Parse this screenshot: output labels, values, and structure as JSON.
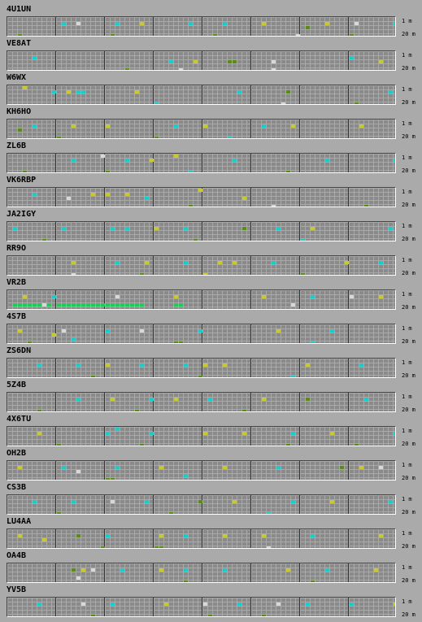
{
  "colors": {
    "background": "#aaaaaa",
    "cyan": "#22c8c8",
    "yellow": "#c8c832",
    "olive": "#5a8a1a",
    "green": "#22c85a",
    "white": "#d8d8d8"
  },
  "band_labels": {
    "top": "1 m",
    "bottom": "20 m"
  },
  "beacons": [
    {
      "call": "4U1UN",
      "cells": [
        [
          11,
          1,
          "cyan"
        ],
        [
          14,
          1,
          "white"
        ],
        [
          22,
          1,
          "cyan"
        ],
        [
          27,
          1,
          "yellow"
        ],
        [
          37,
          1,
          "cyan"
        ],
        [
          44,
          1,
          "cyan"
        ],
        [
          52,
          1,
          "yellow"
        ],
        [
          61,
          2,
          "olive"
        ],
        [
          65,
          1,
          "yellow"
        ],
        [
          71,
          1,
          "white"
        ],
        [
          79,
          1,
          "cyan"
        ],
        [
          88,
          1,
          "yellow"
        ],
        [
          2,
          4,
          "olive"
        ],
        [
          21,
          4,
          "olive"
        ],
        [
          42,
          4,
          "olive"
        ],
        [
          59,
          4,
          "white"
        ],
        [
          70,
          4,
          "olive"
        ]
      ]
    },
    {
      "call": "VE8AT",
      "cells": [
        [
          5,
          1,
          "cyan"
        ],
        [
          33,
          2,
          "cyan"
        ],
        [
          38,
          2,
          "yellow"
        ],
        [
          45,
          2,
          "olive"
        ],
        [
          46,
          2,
          "olive"
        ],
        [
          54,
          2,
          "white"
        ],
        [
          70,
          1,
          "cyan"
        ],
        [
          83,
          2,
          "olive"
        ],
        [
          76,
          2,
          "yellow"
        ],
        [
          24,
          4,
          "olive"
        ],
        [
          35,
          4,
          "white"
        ],
        [
          54,
          4,
          "white"
        ]
      ]
    },
    {
      "call": "W6WX",
      "cells": [
        [
          3,
          0,
          "yellow"
        ],
        [
          9,
          1,
          "cyan"
        ],
        [
          12,
          1,
          "yellow"
        ],
        [
          14,
          1,
          "cyan"
        ],
        [
          15,
          1,
          "cyan"
        ],
        [
          26,
          1,
          "yellow"
        ],
        [
          47,
          1,
          "cyan"
        ],
        [
          57,
          1,
          "olive"
        ],
        [
          78,
          1,
          "cyan"
        ],
        [
          83,
          1,
          "yellow"
        ],
        [
          89,
          1,
          "yellow"
        ],
        [
          56,
          4,
          "white"
        ],
        [
          30,
          4,
          "cyan"
        ],
        [
          71,
          4,
          "olive"
        ]
      ]
    },
    {
      "call": "KH6HO",
      "cells": [
        [
          5,
          1,
          "cyan"
        ],
        [
          13,
          1,
          "yellow"
        ],
        [
          20,
          1,
          "yellow"
        ],
        [
          34,
          1,
          "cyan"
        ],
        [
          40,
          1,
          "yellow"
        ],
        [
          52,
          1,
          "cyan"
        ],
        [
          58,
          1,
          "yellow"
        ],
        [
          72,
          1,
          "yellow"
        ],
        [
          84,
          1,
          "yellow"
        ],
        [
          88,
          1,
          "yellow"
        ],
        [
          2,
          2,
          "olive"
        ],
        [
          10,
          4,
          "olive"
        ],
        [
          30,
          4,
          "olive"
        ],
        [
          45,
          4,
          "cyan"
        ]
      ]
    },
    {
      "call": "ZL6B",
      "cells": [
        [
          13,
          1,
          "cyan"
        ],
        [
          19,
          0,
          "white"
        ],
        [
          24,
          1,
          "cyan"
        ],
        [
          29,
          1,
          "yellow"
        ],
        [
          34,
          0,
          "yellow"
        ],
        [
          46,
          1,
          "cyan"
        ],
        [
          65,
          1,
          "cyan"
        ],
        [
          79,
          1,
          "cyan"
        ],
        [
          3,
          4,
          "olive"
        ],
        [
          20,
          4,
          "olive"
        ],
        [
          37,
          4,
          "cyan"
        ],
        [
          57,
          4,
          "olive"
        ]
      ]
    },
    {
      "call": "VK6RBP",
      "cells": [
        [
          5,
          1,
          "cyan"
        ],
        [
          17,
          1,
          "yellow"
        ],
        [
          20,
          1,
          "yellow"
        ],
        [
          24,
          1,
          "yellow"
        ],
        [
          39,
          0,
          "yellow"
        ],
        [
          48,
          2,
          "yellow"
        ],
        [
          12,
          2,
          "white"
        ],
        [
          28,
          2,
          "cyan"
        ],
        [
          37,
          4,
          "olive"
        ],
        [
          54,
          4,
          "white"
        ],
        [
          73,
          4,
          "olive"
        ]
      ]
    },
    {
      "call": "JA2IGY",
      "cells": [
        [
          1,
          1,
          "cyan"
        ],
        [
          11,
          1,
          "cyan"
        ],
        [
          21,
          1,
          "cyan"
        ],
        [
          24,
          1,
          "cyan"
        ],
        [
          30,
          1,
          "yellow"
        ],
        [
          36,
          1,
          "cyan"
        ],
        [
          48,
          1,
          "olive"
        ],
        [
          55,
          1,
          "cyan"
        ],
        [
          62,
          1,
          "yellow"
        ],
        [
          78,
          1,
          "cyan"
        ],
        [
          7,
          4,
          "olive"
        ],
        [
          38,
          4,
          "olive"
        ],
        [
          60,
          4,
          "cyan"
        ]
      ]
    },
    {
      "call": "RR9O",
      "cells": [
        [
          13,
          1,
          "yellow"
        ],
        [
          22,
          1,
          "cyan"
        ],
        [
          28,
          1,
          "yellow"
        ],
        [
          36,
          1,
          "cyan"
        ],
        [
          43,
          1,
          "yellow"
        ],
        [
          46,
          1,
          "yellow"
        ],
        [
          54,
          1,
          "cyan"
        ],
        [
          69,
          1,
          "yellow"
        ],
        [
          76,
          1,
          "cyan"
        ],
        [
          83,
          1,
          "cyan"
        ],
        [
          88,
          1,
          "cyan"
        ],
        [
          13,
          4,
          "white"
        ],
        [
          27,
          4,
          "olive"
        ],
        [
          40,
          4,
          "yellow"
        ],
        [
          60,
          4,
          "olive"
        ]
      ]
    },
    {
      "call": "VR2B",
      "cells": [
        [
          3,
          1,
          "yellow"
        ],
        [
          9,
          1,
          "cyan"
        ],
        [
          22,
          1,
          "white"
        ],
        [
          34,
          1,
          "yellow"
        ],
        [
          52,
          1,
          "yellow"
        ],
        [
          62,
          1,
          "cyan"
        ],
        [
          70,
          1,
          "white"
        ],
        [
          76,
          1,
          "yellow"
        ],
        [
          85,
          1,
          "cyan"
        ],
        [
          1,
          3,
          "green"
        ],
        [
          2,
          3,
          "green"
        ],
        [
          3,
          3,
          "green"
        ],
        [
          4,
          3,
          "green"
        ],
        [
          5,
          3,
          "green"
        ],
        [
          6,
          3,
          "green"
        ],
        [
          7,
          3,
          "white"
        ],
        [
          8,
          3,
          "green"
        ],
        [
          10,
          3,
          "green"
        ],
        [
          11,
          3,
          "green"
        ],
        [
          12,
          3,
          "green"
        ],
        [
          13,
          3,
          "green"
        ],
        [
          14,
          3,
          "green"
        ],
        [
          15,
          3,
          "green"
        ],
        [
          16,
          3,
          "green"
        ],
        [
          17,
          3,
          "green"
        ],
        [
          18,
          3,
          "green"
        ],
        [
          19,
          3,
          "green"
        ],
        [
          20,
          3,
          "green"
        ],
        [
          21,
          3,
          "green"
        ],
        [
          22,
          3,
          "green"
        ],
        [
          23,
          3,
          "green"
        ],
        [
          24,
          3,
          "green"
        ],
        [
          25,
          3,
          "green"
        ],
        [
          26,
          3,
          "green"
        ],
        [
          27,
          3,
          "green"
        ],
        [
          34,
          3,
          "green"
        ],
        [
          35,
          3,
          "green"
        ],
        [
          58,
          3,
          "white"
        ],
        [
          86,
          3,
          "green"
        ],
        [
          87,
          3,
          "green"
        ],
        [
          88,
          3,
          "green"
        ],
        [
          89,
          3,
          "green"
        ],
        [
          90,
          3,
          "green"
        ],
        [
          91,
          3,
          "green"
        ],
        [
          92,
          3,
          "green"
        ],
        [
          93,
          3,
          "green"
        ]
      ]
    },
    {
      "call": "4S7B",
      "cells": [
        [
          2,
          1,
          "yellow"
        ],
        [
          9,
          2,
          "yellow"
        ],
        [
          11,
          1,
          "white"
        ],
        [
          20,
          1,
          "cyan"
        ],
        [
          27,
          1,
          "white"
        ],
        [
          39,
          1,
          "cyan"
        ],
        [
          55,
          1,
          "yellow"
        ],
        [
          66,
          1,
          "cyan"
        ],
        [
          80,
          1,
          "cyan"
        ],
        [
          84,
          1,
          "yellow"
        ],
        [
          4,
          4,
          "olive"
        ],
        [
          13,
          3,
          "cyan"
        ],
        [
          34,
          4,
          "olive"
        ],
        [
          35,
          4,
          "olive"
        ],
        [
          62,
          4,
          "cyan"
        ]
      ]
    },
    {
      "call": "ZS6DN",
      "cells": [
        [
          6,
          1,
          "cyan"
        ],
        [
          14,
          1,
          "cyan"
        ],
        [
          20,
          1,
          "yellow"
        ],
        [
          27,
          1,
          "cyan"
        ],
        [
          36,
          1,
          "cyan"
        ],
        [
          40,
          1,
          "yellow"
        ],
        [
          44,
          1,
          "yellow"
        ],
        [
          61,
          1,
          "yellow"
        ],
        [
          72,
          1,
          "cyan"
        ],
        [
          84,
          1,
          "yellow"
        ],
        [
          17,
          4,
          "olive"
        ],
        [
          39,
          4,
          "olive"
        ],
        [
          58,
          4,
          "cyan"
        ]
      ]
    },
    {
      "call": "5Z4B",
      "cells": [
        [
          14,
          1,
          "cyan"
        ],
        [
          21,
          1,
          "yellow"
        ],
        [
          29,
          1,
          "cyan"
        ],
        [
          34,
          1,
          "yellow"
        ],
        [
          41,
          1,
          "cyan"
        ],
        [
          52,
          1,
          "yellow"
        ],
        [
          61,
          1,
          "olive"
        ],
        [
          73,
          1,
          "cyan"
        ],
        [
          82,
          1,
          "yellow"
        ],
        [
          87,
          1,
          "yellow"
        ],
        [
          6,
          4,
          "olive"
        ],
        [
          26,
          4,
          "olive"
        ],
        [
          48,
          4,
          "olive"
        ]
      ]
    },
    {
      "call": "4X6TU",
      "cells": [
        [
          6,
          1,
          "yellow"
        ],
        [
          20,
          1,
          "cyan"
        ],
        [
          22,
          0,
          "cyan"
        ],
        [
          29,
          1,
          "cyan"
        ],
        [
          40,
          1,
          "yellow"
        ],
        [
          48,
          1,
          "yellow"
        ],
        [
          58,
          1,
          "cyan"
        ],
        [
          66,
          1,
          "yellow"
        ],
        [
          79,
          1,
          "cyan"
        ],
        [
          88,
          1,
          "yellow"
        ],
        [
          10,
          4,
          "olive"
        ],
        [
          27,
          4,
          "olive"
        ],
        [
          57,
          4,
          "olive"
        ],
        [
          71,
          4,
          "olive"
        ]
      ]
    },
    {
      "call": "OH2B",
      "cells": [
        [
          2,
          1,
          "yellow"
        ],
        [
          11,
          1,
          "cyan"
        ],
        [
          14,
          2,
          "white"
        ],
        [
          22,
          1,
          "cyan"
        ],
        [
          31,
          1,
          "yellow"
        ],
        [
          44,
          1,
          "yellow"
        ],
        [
          55,
          1,
          "cyan"
        ],
        [
          68,
          1,
          "olive"
        ],
        [
          72,
          1,
          "yellow"
        ],
        [
          76,
          1,
          "white"
        ],
        [
          85,
          1,
          "white"
        ],
        [
          89,
          1,
          "white"
        ],
        [
          20,
          4,
          "olive"
        ],
        [
          21,
          4,
          "olive"
        ],
        [
          36,
          3,
          "cyan"
        ]
      ]
    },
    {
      "call": "CS3B",
      "cells": [
        [
          5,
          1,
          "cyan"
        ],
        [
          13,
          1,
          "cyan"
        ],
        [
          21,
          1,
          "white"
        ],
        [
          28,
          1,
          "cyan"
        ],
        [
          39,
          1,
          "olive"
        ],
        [
          46,
          1,
          "yellow"
        ],
        [
          58,
          1,
          "cyan"
        ],
        [
          66,
          1,
          "yellow"
        ],
        [
          78,
          1,
          "cyan"
        ],
        [
          84,
          1,
          "white"
        ],
        [
          10,
          4,
          "olive"
        ],
        [
          33,
          4,
          "olive"
        ],
        [
          53,
          4,
          "cyan"
        ]
      ]
    },
    {
      "call": "LU4AA",
      "cells": [
        [
          2,
          1,
          "yellow"
        ],
        [
          7,
          2,
          "yellow"
        ],
        [
          14,
          1,
          "olive"
        ],
        [
          20,
          1,
          "cyan"
        ],
        [
          31,
          1,
          "yellow"
        ],
        [
          36,
          1,
          "cyan"
        ],
        [
          44,
          1,
          "yellow"
        ],
        [
          52,
          1,
          "yellow"
        ],
        [
          62,
          1,
          "cyan"
        ],
        [
          76,
          1,
          "yellow"
        ],
        [
          88,
          1,
          "yellow"
        ],
        [
          19,
          4,
          "olive"
        ],
        [
          30,
          4,
          "olive"
        ],
        [
          31,
          4,
          "olive"
        ],
        [
          53,
          4,
          "white"
        ]
      ]
    },
    {
      "call": "OA4B",
      "cells": [
        [
          13,
          1,
          "olive"
        ],
        [
          15,
          1,
          "yellow"
        ],
        [
          17,
          1,
          "white"
        ],
        [
          23,
          1,
          "cyan"
        ],
        [
          31,
          1,
          "yellow"
        ],
        [
          36,
          1,
          "cyan"
        ],
        [
          44,
          1,
          "cyan"
        ],
        [
          57,
          1,
          "yellow"
        ],
        [
          65,
          1,
          "cyan"
        ],
        [
          75,
          1,
          "yellow"
        ],
        [
          86,
          1,
          "cyan"
        ],
        [
          14,
          3,
          "white"
        ],
        [
          36,
          4,
          "olive"
        ],
        [
          62,
          4,
          "olive"
        ]
      ]
    },
    {
      "call": "YV5B",
      "cells": [
        [
          6,
          1,
          "cyan"
        ],
        [
          15,
          1,
          "white"
        ],
        [
          21,
          1,
          "cyan"
        ],
        [
          32,
          1,
          "yellow"
        ],
        [
          40,
          1,
          "white"
        ],
        [
          47,
          1,
          "cyan"
        ],
        [
          55,
          1,
          "white"
        ],
        [
          61,
          1,
          "cyan"
        ],
        [
          70,
          1,
          "cyan"
        ],
        [
          79,
          1,
          "yellow"
        ],
        [
          87,
          1,
          "cyan"
        ],
        [
          17,
          4,
          "olive"
        ],
        [
          41,
          4,
          "olive"
        ],
        [
          52,
          4,
          "olive"
        ]
      ]
    }
  ]
}
